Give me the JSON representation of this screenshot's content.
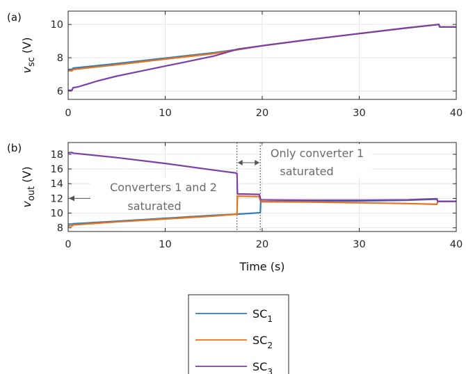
{
  "chart_data": [
    {
      "panel_label": "(a)",
      "type": "line",
      "ylabel_var": "v",
      "ylabel_sub": "sc",
      "ylabel_unit": " (V)",
      "xlim": [
        0,
        40
      ],
      "ylim": [
        5.5,
        10.8
      ],
      "xticks": [
        0,
        10,
        20,
        30,
        40
      ],
      "yticks": [
        6,
        8,
        10
      ],
      "grid": true,
      "series": [
        {
          "name": "SC1",
          "color": "#2f7fb8",
          "points": [
            [
              0,
              7.3
            ],
            [
              0.4,
              7.3
            ],
            [
              0.5,
              7.38
            ],
            [
              5,
              7.65
            ],
            [
              10,
              7.98
            ],
            [
              15,
              8.3
            ],
            [
              17.5,
              8.5
            ],
            [
              20,
              8.72
            ],
            [
              25,
              9.1
            ],
            [
              30,
              9.45
            ],
            [
              35,
              9.8
            ],
            [
              38.2,
              10.0
            ],
            [
              38.3,
              9.85
            ],
            [
              40,
              9.85
            ]
          ]
        },
        {
          "name": "SC2",
          "color": "#e8711e",
          "points": [
            [
              0,
              7.22
            ],
            [
              0.4,
              7.22
            ],
            [
              0.5,
              7.3
            ],
            [
              5,
              7.58
            ],
            [
              10,
              7.92
            ],
            [
              15,
              8.25
            ],
            [
              17.5,
              8.48
            ],
            [
              20,
              8.72
            ],
            [
              25,
              9.1
            ],
            [
              30,
              9.45
            ],
            [
              35,
              9.8
            ],
            [
              38.2,
              10.0
            ],
            [
              38.3,
              9.85
            ],
            [
              40,
              9.85
            ]
          ]
        },
        {
          "name": "SC3",
          "color": "#7a3fa8",
          "points": [
            [
              0,
              6.05
            ],
            [
              0.4,
              6.05
            ],
            [
              0.5,
              6.2
            ],
            [
              1,
              6.25
            ],
            [
              3,
              6.6
            ],
            [
              5,
              6.9
            ],
            [
              7.5,
              7.2
            ],
            [
              10,
              7.5
            ],
            [
              12.5,
              7.8
            ],
            [
              15,
              8.1
            ],
            [
              17.5,
              8.52
            ],
            [
              20,
              8.72
            ],
            [
              25,
              9.1
            ],
            [
              30,
              9.45
            ],
            [
              35,
              9.8
            ],
            [
              38.2,
              10.0
            ],
            [
              38.3,
              9.85
            ],
            [
              40,
              9.85
            ]
          ]
        }
      ]
    },
    {
      "panel_label": "(b)",
      "type": "line",
      "ylabel_var": "v",
      "ylabel_sub": "out",
      "ylabel_unit": " (V)",
      "xlabel": "Time (s)",
      "xlim": [
        0,
        40
      ],
      "ylim": [
        7.5,
        19.6
      ],
      "xticks": [
        0,
        10,
        20,
        30,
        40
      ],
      "yticks": [
        8,
        10,
        12,
        14,
        16,
        18
      ],
      "grid": true,
      "annotations": [
        {
          "lines": [
            "Converters 1 and 2",
            "saturated"
          ]
        },
        {
          "lines": [
            "Only converter 1",
            "saturated"
          ]
        }
      ],
      "markers_x": [
        17.4,
        19.8
      ],
      "series": [
        {
          "name": "SC1",
          "color": "#2f7fb8",
          "points": [
            [
              0,
              8.5
            ],
            [
              0.4,
              8.5
            ],
            [
              0.5,
              8.55
            ],
            [
              5,
              8.9
            ],
            [
              10,
              9.3
            ],
            [
              15,
              9.7
            ],
            [
              17.4,
              9.85
            ],
            [
              19.8,
              10.05
            ],
            [
              19.85,
              11.55
            ],
            [
              25,
              11.65
            ],
            [
              30,
              11.65
            ],
            [
              35,
              11.75
            ],
            [
              38,
              11.9
            ],
            [
              38.1,
              11.6
            ],
            [
              40,
              11.6
            ]
          ]
        },
        {
          "name": "SC2",
          "color": "#e8711e",
          "points": [
            [
              0,
              8.25
            ],
            [
              0.4,
              8.25
            ],
            [
              0.5,
              8.4
            ],
            [
              5,
              8.8
            ],
            [
              10,
              9.2
            ],
            [
              15,
              9.6
            ],
            [
              17.4,
              9.85
            ],
            [
              17.45,
              12.3
            ],
            [
              19.7,
              12.25
            ],
            [
              19.85,
              11.55
            ],
            [
              25,
              11.5
            ],
            [
              30,
              11.4
            ],
            [
              35,
              11.3
            ],
            [
              38,
              11.2
            ],
            [
              38.1,
              11.6
            ],
            [
              40,
              11.6
            ]
          ]
        },
        {
          "name": "SC3",
          "color": "#7a3fa8",
          "points": [
            [
              0,
              18.2
            ],
            [
              0.4,
              18.25
            ],
            [
              0.5,
              18.15
            ],
            [
              5,
              17.55
            ],
            [
              10,
              16.75
            ],
            [
              15,
              15.85
            ],
            [
              17.3,
              15.45
            ],
            [
              17.4,
              15.4
            ],
            [
              17.45,
              12.6
            ],
            [
              19.7,
              12.55
            ],
            [
              19.85,
              11.8
            ],
            [
              25,
              11.75
            ],
            [
              30,
              11.75
            ],
            [
              35,
              11.8
            ],
            [
              38,
              11.95
            ],
            [
              38.1,
              11.6
            ],
            [
              40,
              11.6
            ]
          ]
        }
      ]
    }
  ],
  "legend": {
    "entries": [
      {
        "base": "SC",
        "sub": "1",
        "color": "#2f7fb8"
      },
      {
        "base": "SC",
        "sub": "2",
        "color": "#e8711e"
      },
      {
        "base": "SC",
        "sub": "3",
        "color": "#7a3fa8"
      }
    ]
  }
}
